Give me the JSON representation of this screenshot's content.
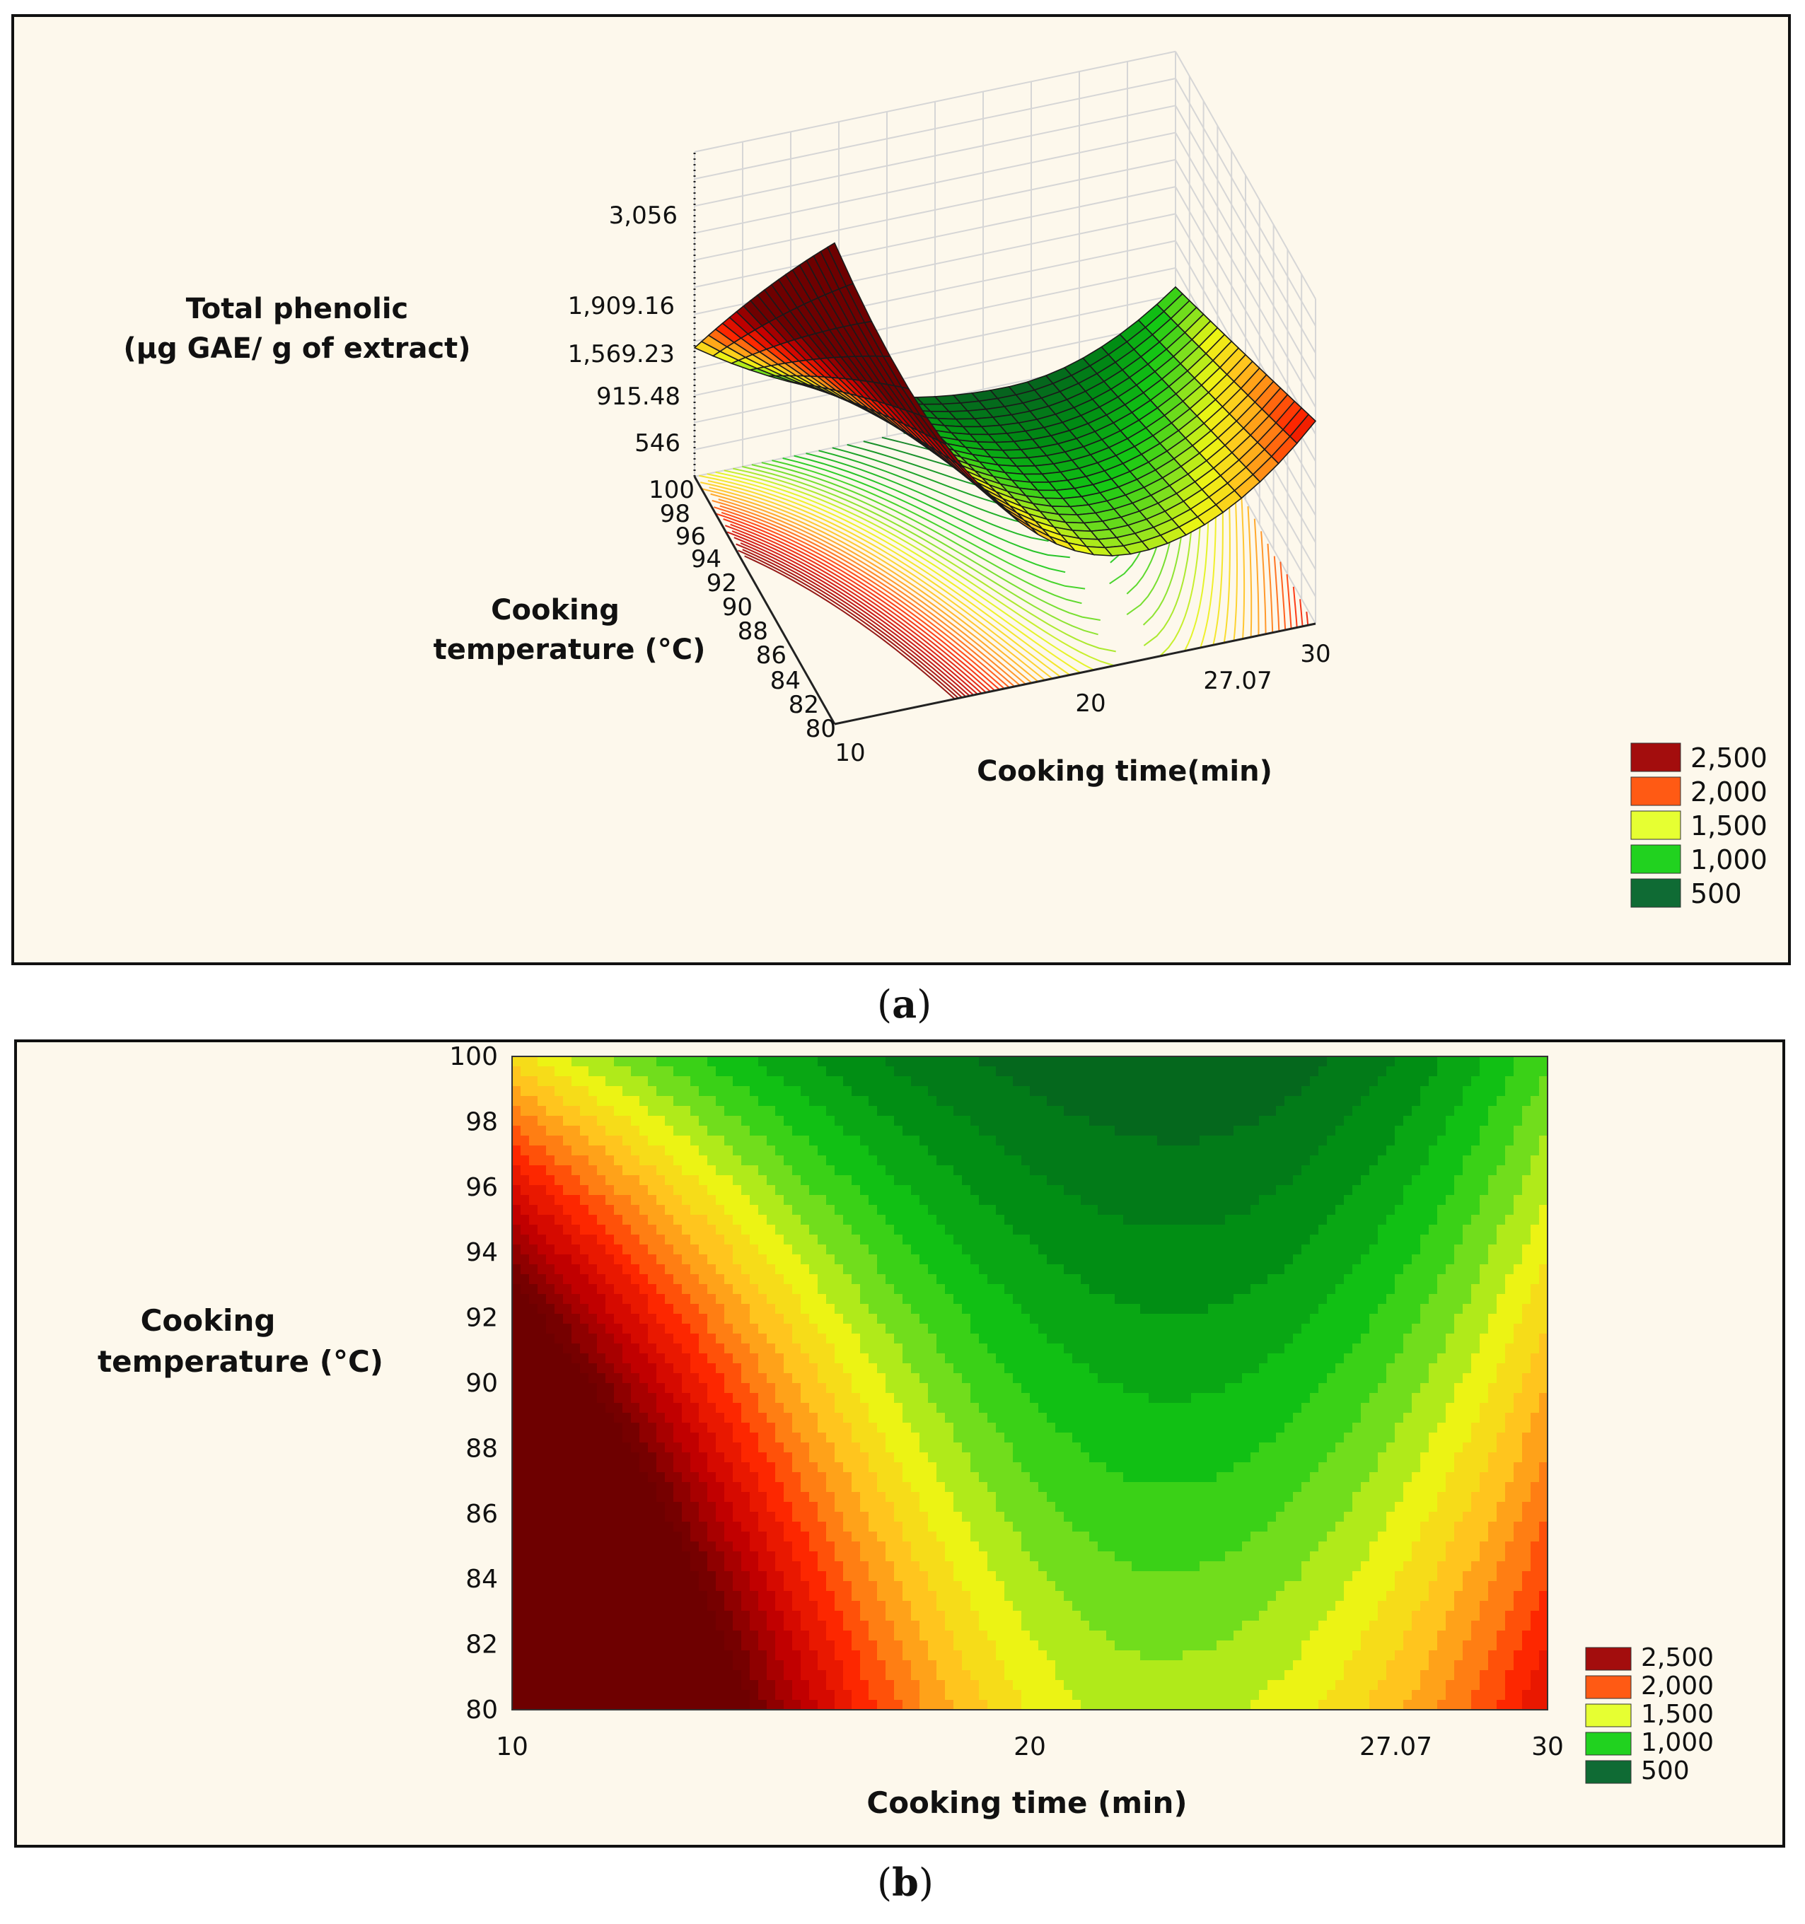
{
  "panels": {
    "a": {
      "caption_open": "(",
      "caption_letter": "a",
      "caption_close": ")",
      "z_label_line1": "Total phenolic",
      "z_label_line2": "(µg GAE/ g of extract)",
      "z_ticks": [
        "3,056",
        "1,909.16",
        "1,569.23",
        "915.48",
        "546"
      ],
      "y_label_line1": "Cooking",
      "y_label_line2": "temperature (°C)",
      "y_ticks": [
        "100",
        "98",
        "96",
        "94",
        "92",
        "90",
        "88",
        "86",
        "84",
        "82",
        "80"
      ],
      "x_label": "Cooking time(min)",
      "x_ticks": [
        "10",
        "20",
        "27.07",
        "30"
      ]
    },
    "b": {
      "caption_open": "(",
      "caption_letter": "b",
      "caption_close": ")",
      "y_label_line1": "Cooking",
      "y_label_line2": "temperature (°C)",
      "x_label": "Cooking time (min)"
    }
  },
  "legend": [
    {
      "label": "2,500",
      "color": "#a30d0d"
    },
    {
      "label": "2,000",
      "color": "#ff5a14"
    },
    {
      "label": "1,500",
      "color": "#e6ff32"
    },
    {
      "label": "1,000",
      "color": "#21d21f"
    },
    {
      "label": "500",
      "color": "#0f6b34"
    }
  ],
  "colors": {
    "panel_bg": "#fdf8ec",
    "dark_red": "#7a0000",
    "red": "#ff1a00",
    "orange": "#ff9c1a",
    "yellow": "#eef21a",
    "green": "#22c81e",
    "dark_green": "#0f6b34"
  },
  "chart_data": [
    {
      "type": "surface",
      "title": "",
      "xlabel": "Cooking time(min)",
      "ylabel": "Cooking temperature (°C)",
      "zlabel": "Total phenolic (µg GAE/ g of extract)",
      "x_range": [
        10,
        30
      ],
      "y_range": [
        80,
        100
      ],
      "x_ticks": [
        10,
        20,
        27.07,
        30
      ],
      "y_ticks": [
        80,
        82,
        84,
        86,
        88,
        90,
        92,
        94,
        96,
        98,
        100
      ],
      "z_ticks": [
        546,
        915.48,
        1569.23,
        1909.16,
        3056
      ],
      "legend": [
        {
          "label": "2,500",
          "value": 2500
        },
        {
          "label": "2,000",
          "value": 2000
        },
        {
          "label": "1,500",
          "value": 1500
        },
        {
          "label": "1,000",
          "value": 1000
        },
        {
          "label": "500",
          "value": 500
        }
      ]
    },
    {
      "type": "contour",
      "title": "",
      "xlabel": "Cooking time (min)",
      "ylabel": "Cooking temperature (°C)",
      "x_range": [
        10,
        30
      ],
      "y_range": [
        80,
        100
      ],
      "x_ticks": [
        10,
        20,
        27.07,
        30
      ],
      "y_ticks": [
        80,
        82,
        84,
        86,
        88,
        90,
        92,
        94,
        96,
        98,
        100
      ],
      "minimum_region": {
        "time_min": 22.5,
        "temperature_c": 100,
        "value_approx": 500
      },
      "levels": [
        500,
        1000,
        1500,
        2000,
        2500
      ],
      "legend": [
        {
          "label": "2,500",
          "value": 2500
        },
        {
          "label": "2,000",
          "value": 2000
        },
        {
          "label": "1,500",
          "value": 1500
        },
        {
          "label": "1,000",
          "value": 1000
        },
        {
          "label": "500",
          "value": 500
        }
      ]
    }
  ]
}
